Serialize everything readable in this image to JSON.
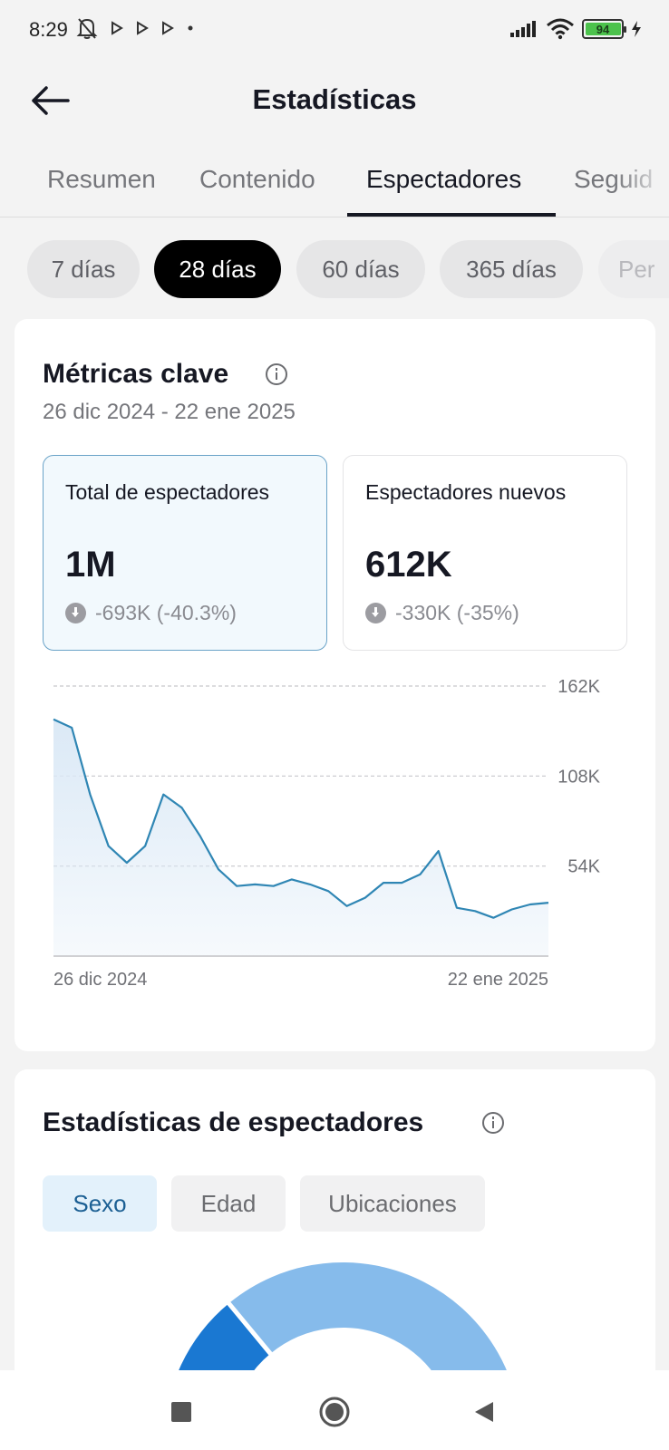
{
  "status_bar": {
    "time": "8:29",
    "battery": "94",
    "battery_level": 0.94
  },
  "header": {
    "title": "Estadísticas"
  },
  "tabs": [
    {
      "label": "Resumen"
    },
    {
      "label": "Contenido"
    },
    {
      "label": "Espectadores"
    },
    {
      "label": "Seguid"
    }
  ],
  "active_tab": "Espectadores",
  "periods": [
    {
      "label": "7 días"
    },
    {
      "label": "28 días"
    },
    {
      "label": "60 días"
    },
    {
      "label": "365 días"
    },
    {
      "label": "Per"
    }
  ],
  "active_period": "28 días",
  "key_metrics": {
    "title": "Métricas clave",
    "date_range": "26 dic 2024 - 22 ene 2025",
    "metrics": [
      {
        "label": "Total de espectadores",
        "value": "1M",
        "change": "-693K (-40.3%)"
      },
      {
        "label": "Espectadores nuevos",
        "value": "612K",
        "change": "-330K (-35%)"
      }
    ]
  },
  "chart_data": {
    "type": "area",
    "y_ticks": [
      "162K",
      "108K",
      "54K"
    ],
    "y_tick_values": [
      162000,
      108000,
      54000
    ],
    "ylim": [
      0,
      162000
    ],
    "x_labels": [
      "26 dic 2024",
      "22 ene 2025"
    ],
    "grid": true,
    "series": [
      {
        "values": [
          142000,
          137000,
          97000,
          66000,
          56000,
          66000,
          97000,
          89000,
          72000,
          52000,
          42000,
          43000,
          42000,
          46000,
          43000,
          39000,
          30000,
          35000,
          44000,
          44000,
          49000,
          63000,
          29000,
          27000,
          23000,
          28000,
          31000,
          32000
        ]
      }
    ],
    "colors": {
      "line": "#2f86b4",
      "fill": "#dbe9f6",
      "grid": "#c7c7cb"
    }
  },
  "viewer_stats": {
    "title": "Estadísticas de espectadores",
    "segments": [
      {
        "label": "Sexo"
      },
      {
        "label": "Edad"
      },
      {
        "label": "Ubicaciones"
      }
    ],
    "active_segment": "Sexo",
    "donut": {
      "colors": [
        "#1a78d2",
        "#86bbeb"
      ],
      "values": [
        0.1,
        0.9
      ]
    }
  }
}
